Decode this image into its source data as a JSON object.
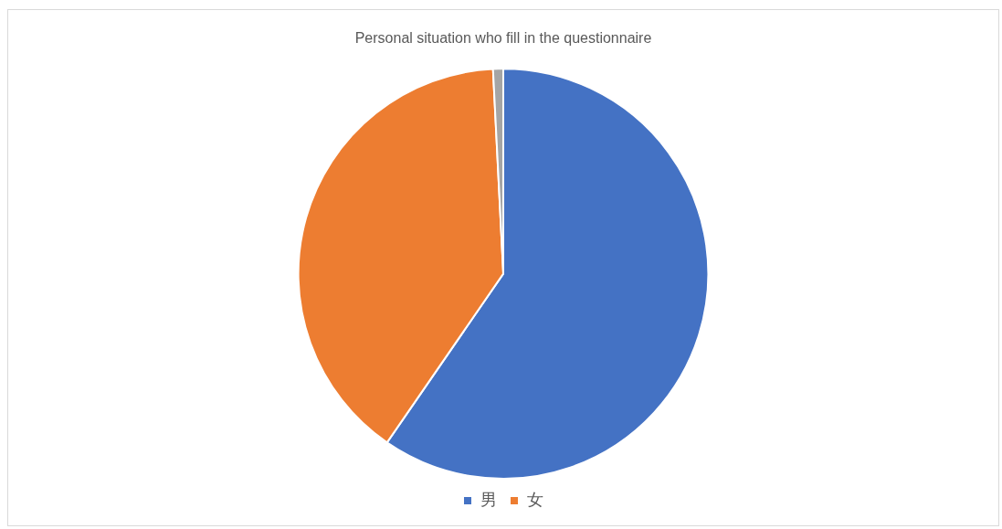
{
  "chart_data": {
    "type": "pie",
    "title": "Personal situation who fill in the questionnaire",
    "categories": [
      "男",
      "女",
      null
    ],
    "values": [
      59.6,
      39.6,
      0.8
    ],
    "colors": [
      "#4472c4",
      "#ed7d31",
      "#a5a5a5"
    ],
    "legend": "bottom"
  }
}
